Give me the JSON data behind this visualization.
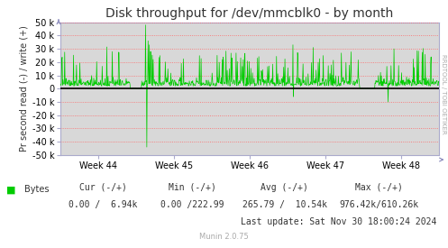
{
  "title": "Disk throughput for /dev/mmcblk0 - by month",
  "ylabel": "Pr second read (-) / write (+)",
  "background_color": "#FFFFFF",
  "plot_bg_color": "#D8D8D8",
  "grid_color": "#FF6666",
  "grid_style": ":",
  "line_color": "#00CC00",
  "zero_line_color": "#000000",
  "x_tick_labels": [
    "Week 44",
    "Week 45",
    "Week 46",
    "Week 47",
    "Week 48"
  ],
  "x_tick_positions": [
    0.1,
    0.3,
    0.5,
    0.7,
    0.9
  ],
  "ylim": [
    -50000,
    50000
  ],
  "yticks": [
    -50000,
    -40000,
    -30000,
    -20000,
    -10000,
    0,
    10000,
    20000,
    30000,
    40000,
    50000
  ],
  "ytick_labels": [
    "-50 k",
    "-40 k",
    "-30 k",
    "-20 k",
    "-10 k",
    "0",
    "10 k",
    "20 k",
    "30 k",
    "40 k",
    "50 k"
  ],
  "legend_label": "Bytes",
  "legend_color": "#00CC00",
  "title_fontsize": 10,
  "tick_fontsize": 7,
  "footer_fontsize": 7,
  "munin_fontsize": 6,
  "rrdtool_label": "RRDTOOL / TOBI OETIKER",
  "rrdtool_fontsize": 5,
  "footer_cur_header": "Cur (-/+)",
  "footer_min_header": "Min (-/+)",
  "footer_avg_header": "Avg (-/+)",
  "footer_max_header": "Max (-/+)",
  "footer_cur_val": "0.00 /  6.94k",
  "footer_min_val": "0.00 /222.99",
  "footer_avg_val": "265.79 /  10.54k",
  "footer_max_val": "976.42k/610.26k",
  "footer_lastupdate": "Last update: Sat Nov 30 18:00:24 2024",
  "munin_version": "Munin 2.0.75",
  "n_points": 900,
  "seed": 42
}
